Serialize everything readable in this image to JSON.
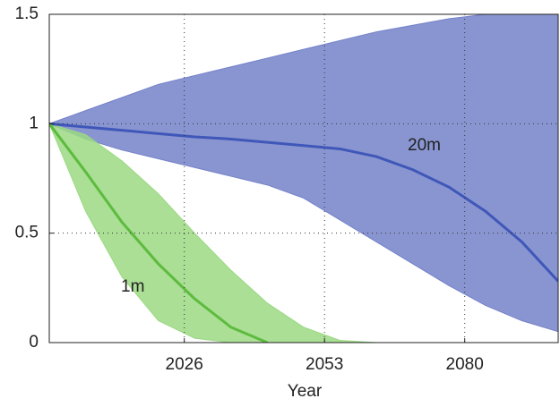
{
  "chart_data": {
    "type": "line",
    "x_label": "Year",
    "x": [
      2000,
      2007,
      2014,
      2021,
      2028,
      2035,
      2042,
      2049,
      2056,
      2063,
      2070,
      2077,
      2084,
      2091,
      2098
    ],
    "series": [
      {
        "name": "20m",
        "color": "#3f57b8",
        "band_color": "#7482c9",
        "values": [
          1,
          0.985,
          0.97,
          0.955,
          0.94,
          0.93,
          0.915,
          0.9,
          0.885,
          0.85,
          0.79,
          0.71,
          0.6,
          0.46,
          0.28
        ],
        "upper": [
          1,
          1.06,
          1.12,
          1.18,
          1.22,
          1.26,
          1.3,
          1.34,
          1.38,
          1.42,
          1.45,
          1.48,
          1.5,
          1.5,
          1.5
        ],
        "lower": [
          1,
          0.93,
          0.88,
          0.84,
          0.8,
          0.76,
          0.72,
          0.66,
          0.56,
          0.46,
          0.36,
          0.26,
          0.17,
          0.1,
          0.05
        ]
      },
      {
        "name": "1m",
        "color": "#5dbb3e",
        "band_color": "#9bd983",
        "values": [
          1,
          0.78,
          0.55,
          0.36,
          0.2,
          0.07,
          0,
          null,
          null,
          null,
          null,
          null,
          null,
          null,
          null
        ],
        "upper": [
          1,
          0.95,
          0.83,
          0.68,
          0.5,
          0.33,
          0.18,
          0.07,
          0.01,
          0,
          0,
          0,
          0,
          0,
          0
        ],
        "lower": [
          1,
          0.6,
          0.3,
          0.1,
          0.02,
          0,
          0,
          0,
          0,
          0,
          0,
          0,
          0,
          0,
          0
        ]
      }
    ],
    "xlim": [
      2000,
      2098
    ],
    "xticks": [
      2026,
      2053,
      2080
    ],
    "ylim": [
      0,
      1.5
    ],
    "yticks": [
      0,
      0.5,
      1,
      1.5
    ],
    "grid": true
  }
}
